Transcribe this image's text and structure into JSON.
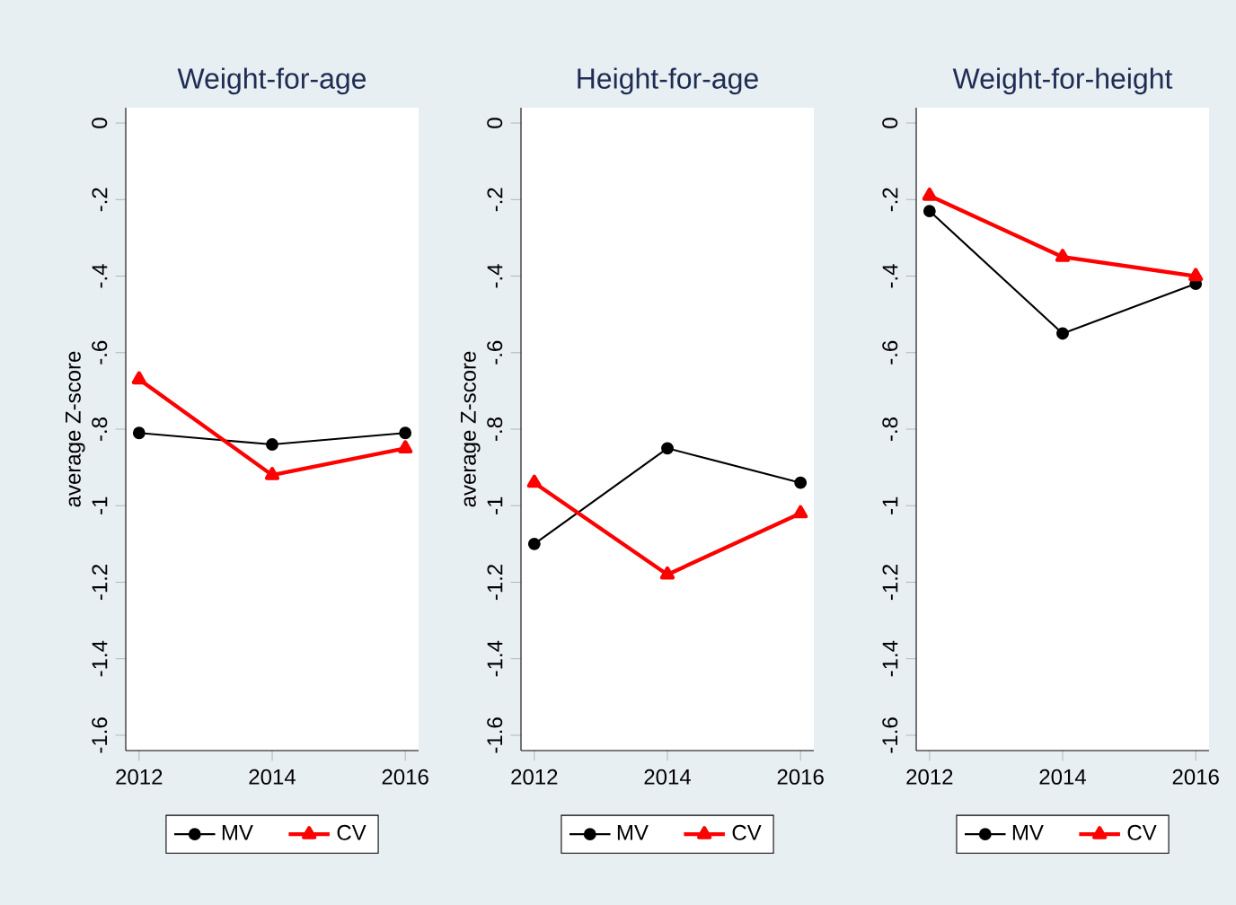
{
  "chart_data": [
    {
      "type": "line",
      "title": "Weight-for-age",
      "ylabel": "average Z-score",
      "x": [
        2012,
        2014,
        2016
      ],
      "series": [
        {
          "name": "MV",
          "color": "#000000",
          "marker": "circle",
          "values": [
            -0.81,
            -0.84,
            -0.81
          ]
        },
        {
          "name": "CV",
          "color": "#ff0000",
          "marker": "triangle",
          "values": [
            -0.67,
            -0.92,
            -0.85
          ]
        }
      ],
      "xlim": [
        2011.8,
        2016.2
      ],
      "ylim": [
        -1.64,
        0.04
      ],
      "xticks": [
        2012,
        2014,
        2016
      ],
      "yticks": [
        0,
        {
          "value": -0.2,
          "label": "-.2"
        },
        {
          "value": -0.4,
          "label": "-.4"
        },
        {
          "value": -0.6,
          "label": "-.6"
        },
        {
          "value": -0.8,
          "label": "-.8"
        },
        -1,
        -1.2,
        -1.4,
        -1.6
      ],
      "legend": "bottom",
      "grid": false
    },
    {
      "type": "line",
      "title": "Height-for-age",
      "ylabel": "average Z-score",
      "x": [
        2012,
        2014,
        2016
      ],
      "series": [
        {
          "name": "MV",
          "color": "#000000",
          "marker": "circle",
          "values": [
            -1.1,
            -0.85,
            -0.94
          ]
        },
        {
          "name": "CV",
          "color": "#ff0000",
          "marker": "triangle",
          "values": [
            -0.94,
            -1.18,
            -1.02
          ]
        }
      ],
      "xlim": [
        2011.8,
        2016.2
      ],
      "ylim": [
        -1.64,
        0.04
      ],
      "xticks": [
        2012,
        2014,
        2016
      ],
      "yticks": [
        0,
        {
          "value": -0.2,
          "label": "-.2"
        },
        {
          "value": -0.4,
          "label": "-.4"
        },
        {
          "value": -0.6,
          "label": "-.6"
        },
        {
          "value": -0.8,
          "label": "-.8"
        },
        -1,
        -1.2,
        -1.4,
        -1.6
      ],
      "legend": "bottom",
      "grid": false
    },
    {
      "type": "line",
      "title": "Weight-for-height",
      "x": [
        2012,
        2014,
        2016
      ],
      "series": [
        {
          "name": "MV",
          "color": "#000000",
          "marker": "circle",
          "values": [
            -0.23,
            -0.55,
            -0.42
          ]
        },
        {
          "name": "CV",
          "color": "#ff0000",
          "marker": "triangle",
          "values": [
            -0.19,
            -0.35,
            -0.4
          ]
        }
      ],
      "xlim": [
        2011.8,
        2016.2
      ],
      "ylim": [
        -1.64,
        0.04
      ],
      "xticks": [
        2012,
        2014,
        2016
      ],
      "yticks": [
        0,
        {
          "value": -0.2,
          "label": "-.2"
        },
        {
          "value": -0.4,
          "label": "-.4"
        },
        {
          "value": -0.6,
          "label": "-.6"
        },
        {
          "value": -0.8,
          "label": "-.8"
        },
        -1,
        -1.2,
        -1.4,
        -1.6
      ],
      "legend": "bottom",
      "grid": false
    }
  ]
}
